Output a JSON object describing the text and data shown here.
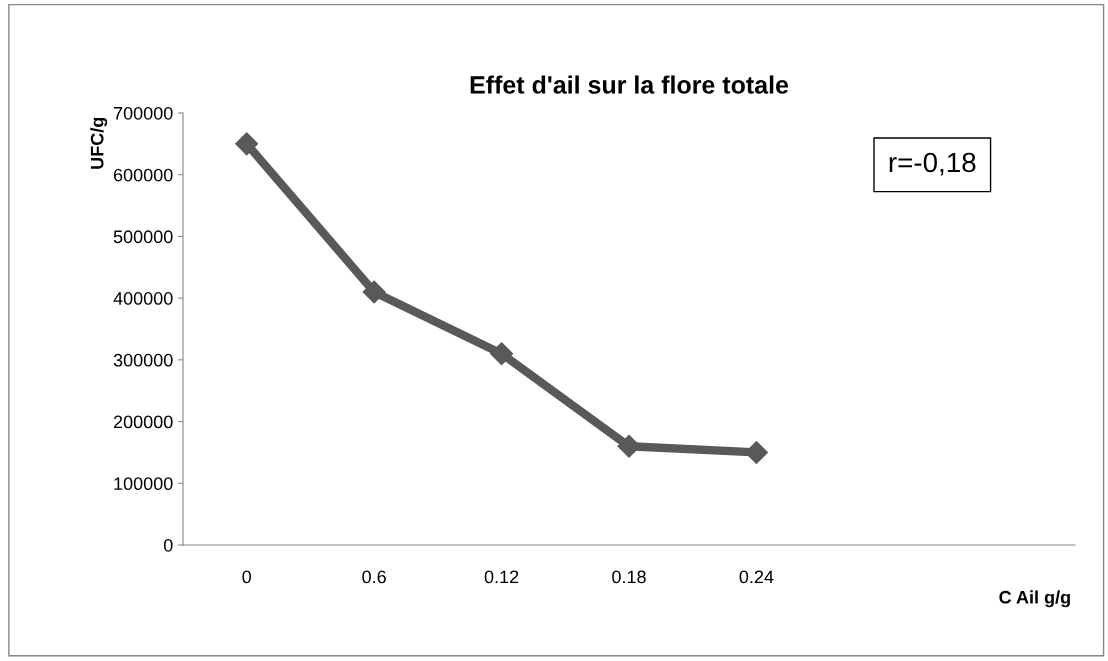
{
  "chart_data": {
    "type": "line",
    "title": "Effet d'ail sur la flore totale",
    "xlabel": "C Ail g/g",
    "ylabel": "UFC/g",
    "categories": [
      "0",
      "0.6",
      "0.12",
      "0.18",
      "0.24",
      null,
      null
    ],
    "series": [
      {
        "color": "#595959",
        "values": [
          650000,
          410000,
          310000,
          160000,
          150000,
          null,
          null
        ]
      }
    ],
    "ylim": [
      0,
      700000
    ],
    "yticks": [
      0,
      100000,
      200000,
      300000,
      400000,
      500000,
      600000,
      700000
    ],
    "annotations": [
      "r=-0,18"
    ],
    "grid": false,
    "legend": false,
    "marker": "diamond",
    "line_style": "solid"
  }
}
